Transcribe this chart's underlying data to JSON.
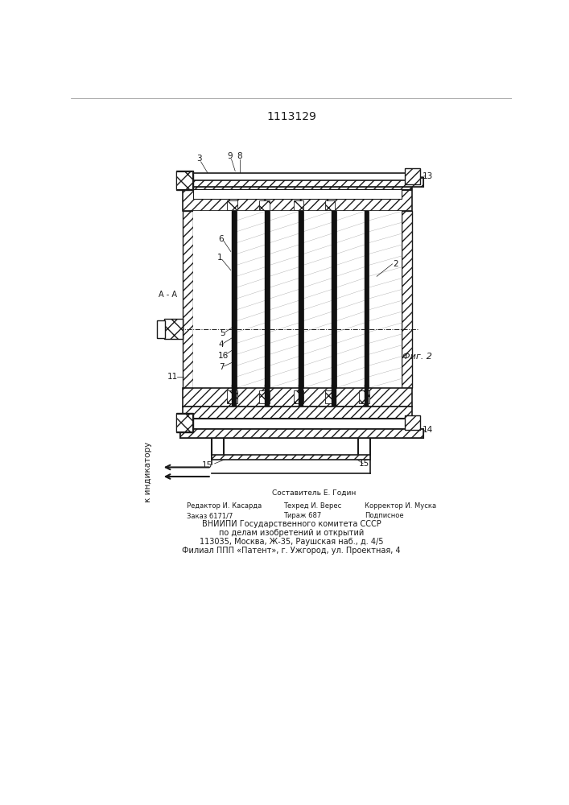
{
  "title": "1113129",
  "fig2_label": "Фиг. 2",
  "aa_label": "А - А",
  "indicator_label": "к индикатору",
  "footer_line1": "Составитель Е. Годин",
  "footer_line2_left": "Редактор И. Касарда",
  "footer_line2_mid": "Техред И. Верес",
  "footer_line2_right": "Корректор И. Муска",
  "footer_line3_left": "Заказ 6171/7",
  "footer_line3_mid": "Тираж 687",
  "footer_line3_right": "Подписное",
  "footer_line4": "ВНИИПИ Государственного комитета СССР",
  "footer_line5": "по делам изобретений и открытий",
  "footer_line6": "113035, Москва, Ж-35, Раушская наб., д. 4/5",
  "footer_line7": "Филиал ППП «Патент», г. Ужгород, ул. Проектная, 4",
  "bg_color": "#ffffff",
  "line_color": "#1a1a1a",
  "label_fontsize": 7.5,
  "title_fontsize": 10
}
